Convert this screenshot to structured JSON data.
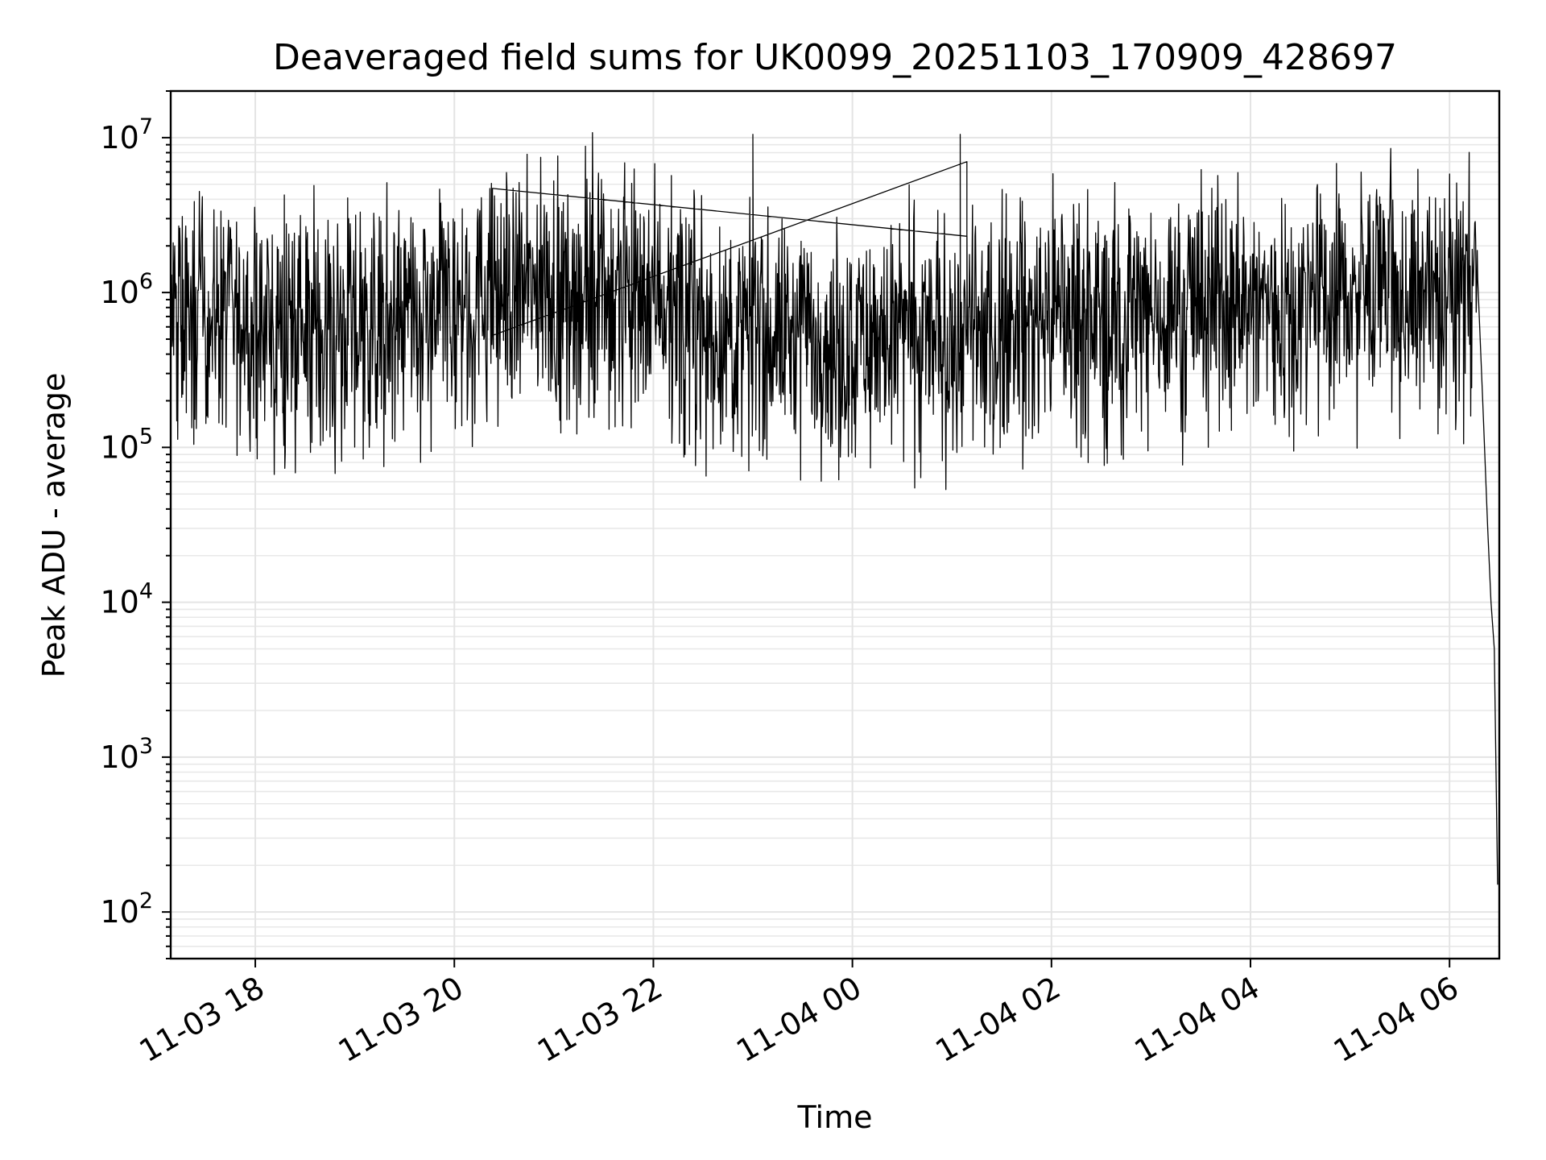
{
  "chart_data": {
    "type": "line",
    "title": "Deaveraged field sums for UK0099_20251103_170909_428697",
    "xlabel": "Time",
    "ylabel": "Peak ADU - average",
    "yscale": "log",
    "ylim": [
      50,
      20000000
    ],
    "y_ticks": [
      {
        "base": "10",
        "exp": "2",
        "value": 100
      },
      {
        "base": "10",
        "exp": "3",
        "value": 1000
      },
      {
        "base": "10",
        "exp": "4",
        "value": 10000
      },
      {
        "base": "10",
        "exp": "5",
        "value": 100000
      },
      {
        "base": "10",
        "exp": "6",
        "value": 1000000
      },
      {
        "base": "10",
        "exp": "7",
        "value": 10000000
      }
    ],
    "xlim": [
      "2025-11-03 17:09",
      "2025-11-04 06:30"
    ],
    "x_ticks": [
      {
        "label": "11-03 18",
        "value": "2025-11-03 18:00"
      },
      {
        "label": "11-03 20",
        "value": "2025-11-03 20:00"
      },
      {
        "label": "11-03 22",
        "value": "2025-11-03 22:00"
      },
      {
        "label": "11-04 00",
        "value": "2025-11-04 00:00"
      },
      {
        "label": "11-04 02",
        "value": "2025-11-04 02:00"
      },
      {
        "label": "11-04 04",
        "value": "2025-11-04 04:00"
      },
      {
        "label": "11-04 06",
        "value": "2025-11-04 06:00"
      }
    ],
    "grid": true,
    "legend": "none",
    "series_color": "#000000",
    "series": [
      {
        "x": [
          "2025-11-03 17:09",
          "2025-11-03 17:30",
          "2025-11-03 18:00",
          "2025-11-03 18:30",
          "2025-11-03 19:00",
          "2025-11-03 19:30",
          "2025-11-03 20:00",
          "2025-11-03 20:30",
          "2025-11-03 21:00",
          "2025-11-03 21:30",
          "2025-11-03 22:00",
          "2025-11-03 22:20",
          "2025-11-03 22:40",
          "2025-11-03 23:00",
          "2025-11-03 23:30",
          "2025-11-04 00:00",
          "2025-11-04 00:30",
          "2025-11-04 01:00",
          "2025-11-04 01:30",
          "2025-11-04 02:00",
          "2025-11-04 02:30",
          "2025-11-04 03:00",
          "2025-11-04 03:30",
          "2025-11-04 04:00",
          "2025-11-04 04:30",
          "2025-11-04 05:00",
          "2025-11-04 05:30",
          "2025-11-04 06:00",
          "2025-11-04 06:17",
          "2025-11-04 06:20",
          "2025-11-04 06:23",
          "2025-11-04 06:25",
          "2025-11-04 06:27",
          "2025-11-04 06:29"
        ],
        "y": [
          700000,
          750000,
          600000,
          650000,
          600000,
          600000,
          800000,
          1000000,
          1000000,
          1200000,
          1100000,
          800000,
          500000,
          550000,
          550000,
          500000,
          550000,
          500000,
          600000,
          800000,
          700000,
          750000,
          800000,
          850000,
          900000,
          1000000,
          900000,
          1100000,
          1000000,
          200000,
          30000,
          10000,
          5000,
          150
        ]
      }
    ],
    "spikes": [
      {
        "x": "2025-11-03 23:00",
        "y": 10500000
      },
      {
        "x": "2025-11-04 01:05",
        "y": 10500000
      },
      {
        "x": "2025-11-04 01:09",
        "y": 7000000
      },
      {
        "x": "2025-11-03 20:23",
        "y": 4700000
      },
      {
        "x": "2025-11-04 06:20",
        "y": 3400000
      }
    ]
  }
}
